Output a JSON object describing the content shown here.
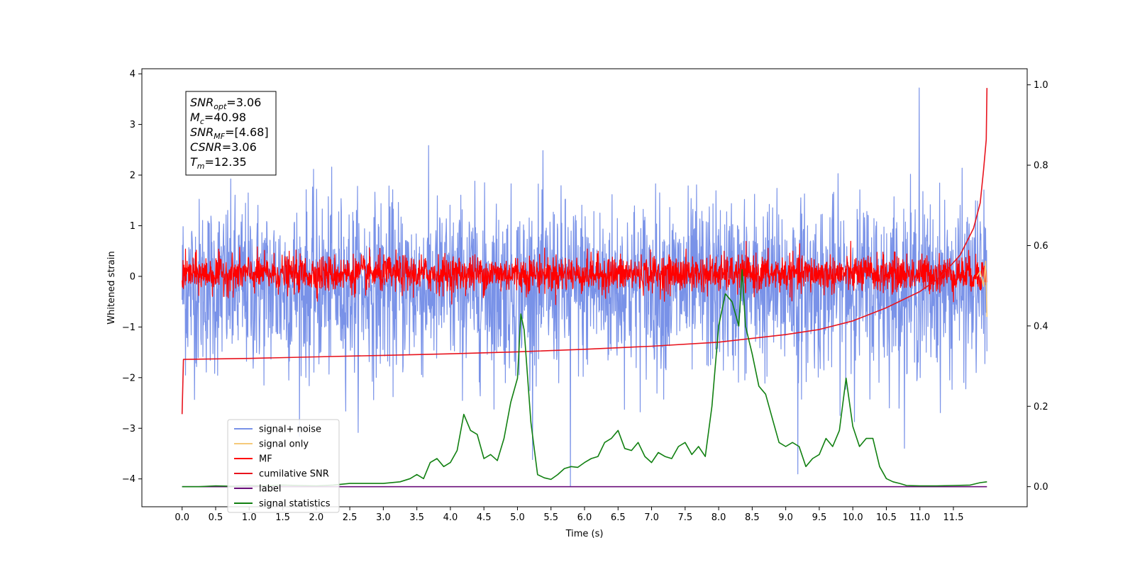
{
  "chart_data": {
    "type": "line",
    "xlabel": "Time (s)",
    "ylabel": "Whitened strain",
    "xlim": [
      -0.6,
      12.6
    ],
    "ylim": [
      -4.55,
      4.1
    ],
    "y2lim": [
      -0.05,
      1.04
    ],
    "x_ticks": [
      0.0,
      0.5,
      1.0,
      1.5,
      2.0,
      2.5,
      3.0,
      3.5,
      4.0,
      4.5,
      5.0,
      5.5,
      6.0,
      6.5,
      7.0,
      7.5,
      8.0,
      8.5,
      9.0,
      9.5,
      10.0,
      10.5,
      11.0,
      11.5
    ],
    "x_tick_labels": [
      "0.0",
      "0.5",
      "1.0",
      "1.5",
      "2.0",
      "2.5",
      "3.0",
      "3.5",
      "4.0",
      "4.5",
      "5.0",
      "5.5",
      "6.0",
      "6.5",
      "7.0",
      "7.5",
      "8.0",
      "8.5",
      "9.0",
      "9.5",
      "10.0",
      "10.5",
      "11.0",
      "11.5"
    ],
    "y_ticks": [
      4,
      3,
      2,
      1,
      0,
      -1,
      -2,
      -3,
      -4
    ],
    "y_tick_labels": [
      "4",
      "3",
      "2",
      "1",
      "0",
      "−1",
      "−2",
      "−3",
      "−4"
    ],
    "y2_ticks": [
      1.0,
      0.8,
      0.6,
      0.4,
      0.2,
      0.0
    ],
    "y2_tick_labels": [
      "1.0",
      "0.8",
      "0.6",
      "0.4",
      "0.2",
      "0.0"
    ],
    "annotation": [
      {
        "main": "SNR",
        "sub": "opt",
        "rest": "=3.06"
      },
      {
        "main": "M",
        "sub": "c",
        "rest": "=40.98"
      },
      {
        "main": "SNR",
        "sub": "MF",
        "rest": "=[4.68]"
      },
      {
        "main": "CSNR",
        "sub": "",
        "rest": "=3.06"
      },
      {
        "main": "T",
        "sub": "m",
        "rest": "=12.35"
      }
    ],
    "legend_position": "lower-left",
    "series": [
      {
        "name": "signal+ noise",
        "color": "#7992e8",
        "axis": "left",
        "style": "noise",
        "x_range": [
          0.0,
          12.0
        ],
        "mean": -0.2,
        "std": 0.85,
        "notable_spikes": [
          [
            10.99,
            3.72
          ],
          [
            5.79,
            -4.15
          ],
          [
            9.18,
            -3.9
          ]
        ]
      },
      {
        "name": "signal only",
        "color": "#f5c97a",
        "axis": "left",
        "x": [
          11.85,
          11.9,
          11.95,
          11.98,
          12.0
        ],
        "y": [
          0.0,
          0.1,
          -0.2,
          0.3,
          -0.8
        ]
      },
      {
        "name": "MF",
        "color": "#ff0000",
        "axis": "left",
        "style": "noise",
        "x_range": [
          0.0,
          12.0
        ],
        "mean": 0.05,
        "std": 0.18
      },
      {
        "name": "cumilative SNR",
        "color": "#e8141e",
        "axis": "left",
        "x": [
          0.0,
          0.02,
          1.0,
          2.0,
          3.0,
          4.0,
          5.0,
          6.0,
          7.0,
          8.0,
          9.0,
          9.5,
          10.0,
          10.5,
          11.0,
          11.3,
          11.6,
          11.8,
          11.9,
          11.95,
          11.99,
          12.0
        ],
        "y": [
          -2.72,
          -1.64,
          -1.62,
          -1.59,
          -1.56,
          -1.53,
          -1.49,
          -1.44,
          -1.38,
          -1.3,
          -1.15,
          -1.05,
          -0.88,
          -0.62,
          -0.3,
          -0.02,
          0.42,
          0.95,
          1.45,
          2.1,
          2.7,
          3.72
        ]
      },
      {
        "name": "label",
        "color": "#6a0f7a",
        "axis": "right",
        "x": [
          0.0,
          12.0
        ],
        "y": [
          0.0,
          0.0
        ]
      },
      {
        "name": "signal statistics",
        "color": "#118011",
        "axis": "right",
        "x": [
          0.0,
          0.25,
          0.5,
          0.75,
          1.0,
          1.25,
          1.5,
          1.75,
          2.0,
          2.25,
          2.5,
          2.75,
          3.0,
          3.25,
          3.4,
          3.5,
          3.6,
          3.7,
          3.8,
          3.9,
          4.0,
          4.1,
          4.2,
          4.3,
          4.4,
          4.5,
          4.6,
          4.7,
          4.8,
          4.9,
          5.0,
          5.05,
          5.1,
          5.2,
          5.3,
          5.4,
          5.5,
          5.6,
          5.7,
          5.8,
          5.9,
          6.0,
          6.1,
          6.2,
          6.3,
          6.4,
          6.5,
          6.6,
          6.7,
          6.8,
          6.9,
          7.0,
          7.1,
          7.2,
          7.3,
          7.4,
          7.5,
          7.6,
          7.7,
          7.8,
          7.9,
          8.0,
          8.1,
          8.2,
          8.3,
          8.35,
          8.4,
          8.5,
          8.6,
          8.7,
          8.8,
          8.9,
          9.0,
          9.1,
          9.2,
          9.3,
          9.4,
          9.5,
          9.6,
          9.7,
          9.8,
          9.9,
          10.0,
          10.1,
          10.2,
          10.3,
          10.4,
          10.5,
          10.6,
          10.7,
          10.8,
          11.0,
          11.25,
          11.5,
          11.75,
          11.9,
          12.0
        ],
        "y": [
          0.0,
          0.0,
          0.002,
          0.001,
          0.003,
          0.002,
          0.004,
          0.003,
          0.002,
          0.004,
          0.008,
          0.008,
          0.008,
          0.012,
          0.02,
          0.03,
          0.02,
          0.06,
          0.07,
          0.05,
          0.06,
          0.09,
          0.18,
          0.14,
          0.13,
          0.07,
          0.08,
          0.065,
          0.12,
          0.21,
          0.27,
          0.43,
          0.39,
          0.16,
          0.03,
          0.022,
          0.018,
          0.03,
          0.045,
          0.05,
          0.048,
          0.06,
          0.07,
          0.075,
          0.11,
          0.12,
          0.14,
          0.095,
          0.09,
          0.11,
          0.075,
          0.06,
          0.085,
          0.075,
          0.07,
          0.1,
          0.11,
          0.08,
          0.1,
          0.075,
          0.2,
          0.4,
          0.48,
          0.46,
          0.4,
          0.54,
          0.4,
          0.33,
          0.25,
          0.23,
          0.17,
          0.11,
          0.1,
          0.11,
          0.1,
          0.05,
          0.07,
          0.08,
          0.12,
          0.1,
          0.14,
          0.27,
          0.15,
          0.1,
          0.12,
          0.12,
          0.05,
          0.02,
          0.012,
          0.008,
          0.003,
          0.002,
          0.002,
          0.003,
          0.004,
          0.01,
          0.012
        ]
      }
    ]
  }
}
